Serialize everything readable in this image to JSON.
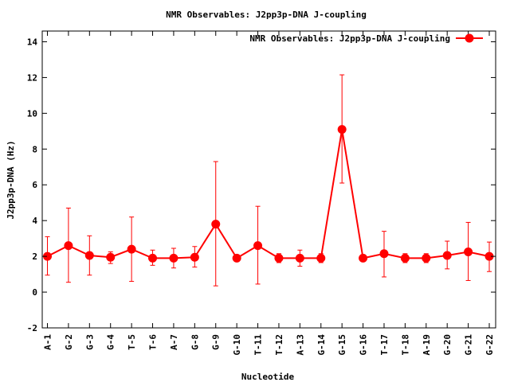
{
  "chart_data": {
    "type": "line",
    "title": "NMR Observables: J2pp3p-DNA J-coupling",
    "xlabel": "Nucleotide",
    "ylabel": "J2pp3p-DNA (Hz)",
    "ylim": [
      -2,
      14.6
    ],
    "yticks": [
      -2,
      0,
      2,
      4,
      6,
      8,
      10,
      12,
      14
    ],
    "grid": false,
    "legend_position": "top-right",
    "colors": {
      "series": "#ff0000",
      "axis": "#000000",
      "background": "#ffffff"
    },
    "categories": [
      "A-1",
      "G-2",
      "G-3",
      "G-4",
      "T-5",
      "T-6",
      "A-7",
      "G-8",
      "G-9",
      "G-10",
      "T-11",
      "T-12",
      "A-13",
      "G-14",
      "G-15",
      "G-16",
      "T-17",
      "T-18",
      "A-19",
      "G-20",
      "G-21",
      "G-22"
    ],
    "series": [
      {
        "name": "NMR Observables: J2pp3p-DNA J-coupling",
        "values": [
          2.0,
          2.6,
          2.05,
          1.95,
          2.4,
          1.9,
          1.9,
          1.95,
          3.8,
          1.9,
          2.6,
          1.9,
          1.9,
          1.9,
          9.1,
          1.9,
          2.15,
          1.9,
          1.9,
          2.05,
          2.25,
          2.0
        ],
        "error_low": [
          0.95,
          0.55,
          0.95,
          1.6,
          0.6,
          1.5,
          1.35,
          1.4,
          0.35,
          1.8,
          0.45,
          1.65,
          1.45,
          1.65,
          6.1,
          1.8,
          0.85,
          1.65,
          1.65,
          1.3,
          0.65,
          1.15
        ],
        "error_high": [
          3.1,
          4.7,
          3.15,
          2.25,
          4.2,
          2.35,
          2.45,
          2.55,
          7.3,
          2.0,
          4.8,
          2.15,
          2.35,
          2.15,
          12.15,
          2.0,
          3.4,
          2.15,
          2.15,
          2.85,
          3.9,
          2.8
        ]
      }
    ]
  }
}
